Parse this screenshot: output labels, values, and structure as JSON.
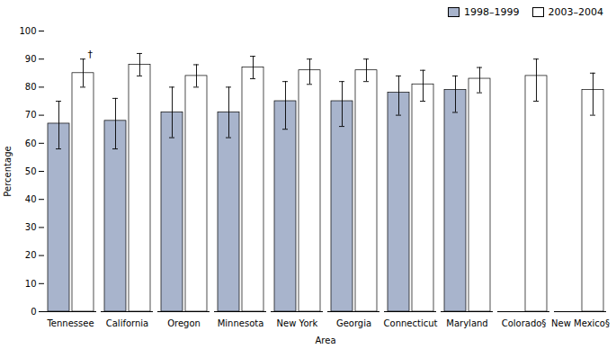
{
  "chart_data": {
    "type": "bar",
    "xlabel": "Area",
    "ylabel": "Percentage",
    "categories": [
      "Tennessee",
      "California",
      "Oregon",
      "Minnesota",
      "New York",
      "Georgia",
      "Connecticut",
      "Maryland",
      "Colorado§",
      "New Mexico§"
    ],
    "series": [
      {
        "name": "1998–1999",
        "color": "#a8b4cc",
        "values": [
          67,
          68,
          71,
          71,
          75,
          75,
          78,
          79,
          null,
          null
        ],
        "ci": [
          [
            58,
            75
          ],
          [
            58,
            76
          ],
          [
            62,
            80
          ],
          [
            62,
            80
          ],
          [
            65,
            82
          ],
          [
            66,
            82
          ],
          [
            70,
            84
          ],
          [
            71,
            84
          ],
          null,
          null
        ]
      },
      {
        "name": "2003–2004",
        "color": "#ffffff",
        "values": [
          85,
          88,
          84,
          87,
          86,
          86,
          81,
          83,
          84,
          79
        ],
        "ci": [
          [
            80,
            90
          ],
          [
            84,
            92
          ],
          [
            80,
            88
          ],
          [
            83,
            91
          ],
          [
            81,
            90
          ],
          [
            82,
            90
          ],
          [
            75,
            86
          ],
          [
            78,
            87
          ],
          [
            75,
            90
          ],
          [
            70,
            85
          ]
        ]
      }
    ],
    "annotations": [
      {
        "text": "†",
        "category": "Tennessee",
        "series": "2003–2004"
      }
    ],
    "ylim": [
      0,
      100
    ],
    "yticks": [
      0,
      10,
      20,
      30,
      40,
      50,
      60,
      70,
      80,
      90,
      100
    ],
    "grid": false,
    "legend": "upper right"
  }
}
